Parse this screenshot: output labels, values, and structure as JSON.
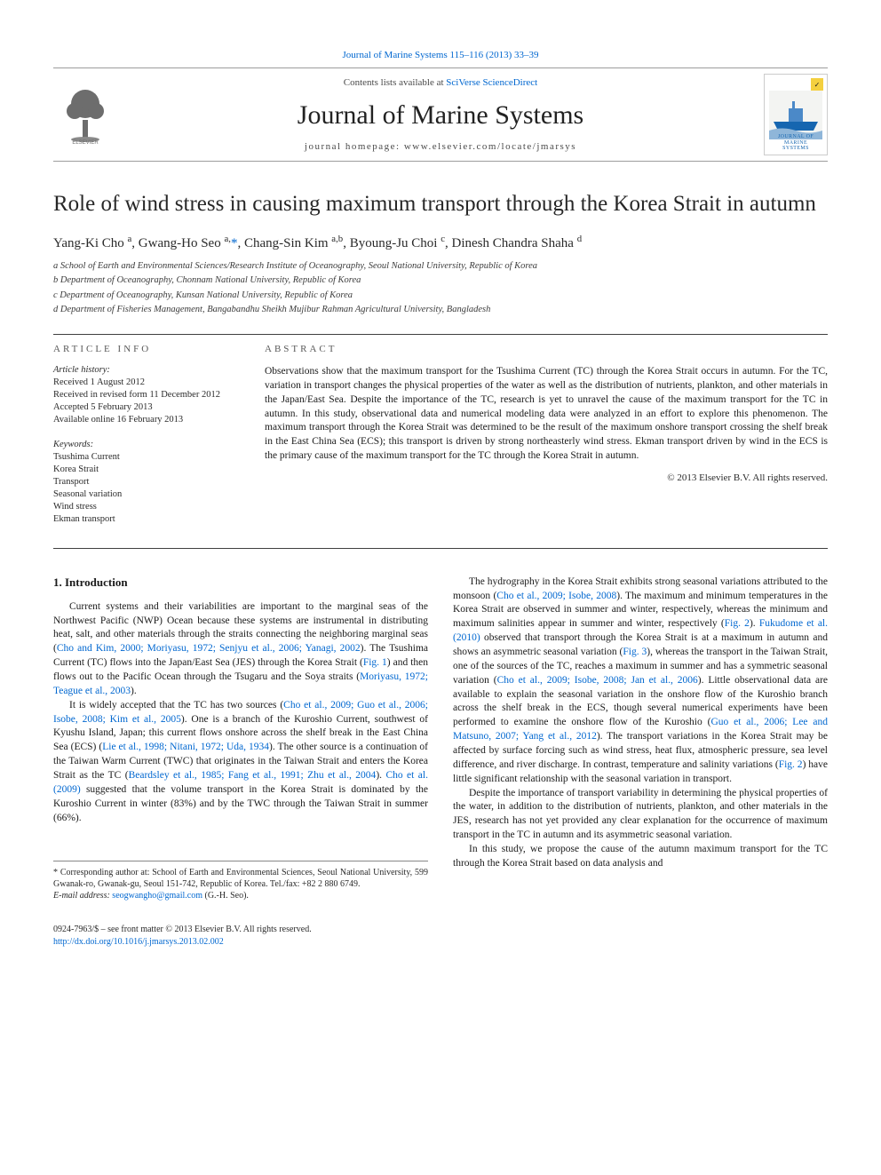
{
  "journal_link_text": "Journal of Marine Systems 115–116 (2013) 33–39",
  "contents_line_prefix": "Contents lists available at ",
  "contents_line_link": "SciVerse ScienceDirect",
  "journal_name": "Journal of Marine Systems",
  "journal_homepage": "journal homepage: www.elsevier.com/locate/jmarsys",
  "title": "Role of wind stress in causing maximum transport through the Korea Strait in autumn",
  "authors_html": "Yang-Ki Cho <sup>a</sup>, Gwang-Ho Seo <sup>a,</sup>",
  "authors_star": "*",
  "authors_tail": ", Chang-Sin Kim <sup>a,b</sup>, Byoung-Ju Choi <sup>c</sup>, Dinesh Chandra Shaha <sup>d</sup>",
  "affiliations": [
    "a School of Earth and Environmental Sciences/Research Institute of Oceanography, Seoul National University, Republic of Korea",
    "b Department of Oceanography, Chonnam National University, Republic of Korea",
    "c Department of Oceanography, Kunsan National University, Republic of Korea",
    "d Department of Fisheries Management, Bangabandhu Sheikh Mujibur Rahman Agricultural University, Bangladesh"
  ],
  "article_info_heading": "ARTICLE INFO",
  "history_heading": "Article history:",
  "history_lines": [
    "Received 1 August 2012",
    "Received in revised form 11 December 2012",
    "Accepted 5 February 2013",
    "Available online 16 February 2013"
  ],
  "keywords_heading": "Keywords:",
  "keywords": [
    "Tsushima Current",
    "Korea Strait",
    "Transport",
    "Seasonal variation",
    "Wind stress",
    "Ekman transport"
  ],
  "abstract_heading": "ABSTRACT",
  "abstract_text": "Observations show that the maximum transport for the Tsushima Current (TC) through the Korea Strait occurs in autumn. For the TC, variation in transport changes the physical properties of the water as well as the distribution of nutrients, plankton, and other materials in the Japan/East Sea. Despite the importance of the TC, research is yet to unravel the cause of the maximum transport for the TC in autumn. In this study, observational data and numerical modeling data were analyzed in an effort to explore this phenomenon. The maximum transport through the Korea Strait was determined to be the result of the maximum onshore transport crossing the shelf break in the East China Sea (ECS); this transport is driven by strong northeasterly wind stress. Ekman transport driven by wind in the ECS is the primary cause of the maximum transport for the TC through the Korea Strait in autumn.",
  "copyright": "© 2013 Elsevier B.V. All rights reserved.",
  "intro_heading": "1. Introduction",
  "col1": {
    "p1_a": "Current systems and their variabilities are important to the marginal seas of the Northwest Pacific (NWP) Ocean because these systems are instrumental in distributing heat, salt, and other materials through the straits connecting the neighboring marginal seas (",
    "p1_link1": "Cho and Kim, 2000; Moriyasu, 1972; Senjyu et al., 2006; Yanagi, 2002",
    "p1_b": "). The Tsushima Current (TC) flows into the Japan/East Sea (JES) through the Korea Strait (",
    "p1_link2": "Fig. 1",
    "p1_c": ") and then flows out to the Pacific Ocean through the Tsugaru and the Soya straits (",
    "p1_link3": "Moriyasu, 1972; Teague et al., 2003",
    "p1_d": ").",
    "p2_a": "It is widely accepted that the TC has two sources (",
    "p2_link1": "Cho et al., 2009; Guo et al., 2006; Isobe, 2008; Kim et al., 2005",
    "p2_b": "). One is a branch of the Kuroshio Current, southwest of Kyushu Island, Japan; this current flows onshore across the shelf break in the East China Sea (ECS) (",
    "p2_link2": "Lie et al., 1998; Nitani, 1972; Uda, 1934",
    "p2_c": "). The other source is a continuation of the Taiwan Warm Current (TWC) that originates in the Taiwan Strait and enters the Korea Strait as the TC (",
    "p2_link3": "Beardsley et al., 1985; Fang et al., 1991; Zhu et al., 2004",
    "p2_d": "). ",
    "p2_link4": "Cho et al. (2009)",
    "p2_e": " suggested that the volume transport in the Korea Strait is dominated by the Kuroshio Current in winter (83%) and by the TWC through the Taiwan Strait in summer (66%)."
  },
  "col2": {
    "p1_a": "The hydrography in the Korea Strait exhibits strong seasonal variations attributed to the monsoon (",
    "p1_link1": "Cho et al., 2009; Isobe, 2008",
    "p1_b": "). The maximum and minimum temperatures in the Korea Strait are observed in summer and winter, respectively, whereas the minimum and maximum salinities appear in summer and winter, respectively (",
    "p1_link2": "Fig. 2",
    "p1_c": "). ",
    "p1_link3": "Fukudome et al. (2010)",
    "p1_d": " observed that transport through the Korea Strait is at a maximum in autumn and shows an asymmetric seasonal variation (",
    "p1_link4": "Fig. 3",
    "p1_e": "), whereas the transport in the Taiwan Strait, one of the sources of the TC, reaches a maximum in summer and has a symmetric seasonal variation (",
    "p1_link5": "Cho et al., 2009; Isobe, 2008; Jan et al., 2006",
    "p1_f": "). Little observational data are available to explain the seasonal variation in the onshore flow of the Kuroshio branch across the shelf break in the ECS, though several numerical experiments have been performed to examine the onshore flow of the Kuroshio (",
    "p1_link6": "Guo et al., 2006; Lee and Matsuno, 2007; Yang et al., 2012",
    "p1_g": "). The transport variations in the Korea Strait may be affected by surface forcing such as wind stress, heat flux, atmospheric pressure, sea level difference, and river discharge. In contrast, temperature and salinity variations (",
    "p1_link7": "Fig. 2",
    "p1_h": ") have little significant relationship with the seasonal variation in transport.",
    "p2": "Despite the importance of transport variability in determining the physical properties of the water, in addition to the distribution of nutrients, plankton, and other materials in the JES, research has not yet provided any clear explanation for the occurrence of maximum transport in the TC in autumn and its asymmetric seasonal variation.",
    "p3": "In this study, we propose the cause of the autumn maximum transport for the TC through the Korea Strait based on data analysis and"
  },
  "footnote_star": "* Corresponding author at: School of Earth and Environmental Sciences, Seoul National University, 599 Gwanak-ro, Gwanak-gu, Seoul 151-742, Republic of Korea. Tel./fax: +82 2 880 6749.",
  "footnote_email_label": "E-mail address: ",
  "footnote_email": "seogwangho@gmail.com",
  "footnote_email_tail": " (G.-H. Seo).",
  "footer_issn": "0924-7963/$ – see front matter © 2013 Elsevier B.V. All rights reserved.",
  "footer_doi": "http://dx.doi.org/10.1016/j.jmarsys.2013.02.002",
  "logo_right_line1": "JOURNAL OF",
  "logo_right_line2": "MARINE",
  "logo_right_line3": "SYSTEMS",
  "colors": {
    "link": "#0067d0",
    "text": "#1a1a1a",
    "rule": "#404040",
    "muted": "#5a5a5a"
  }
}
